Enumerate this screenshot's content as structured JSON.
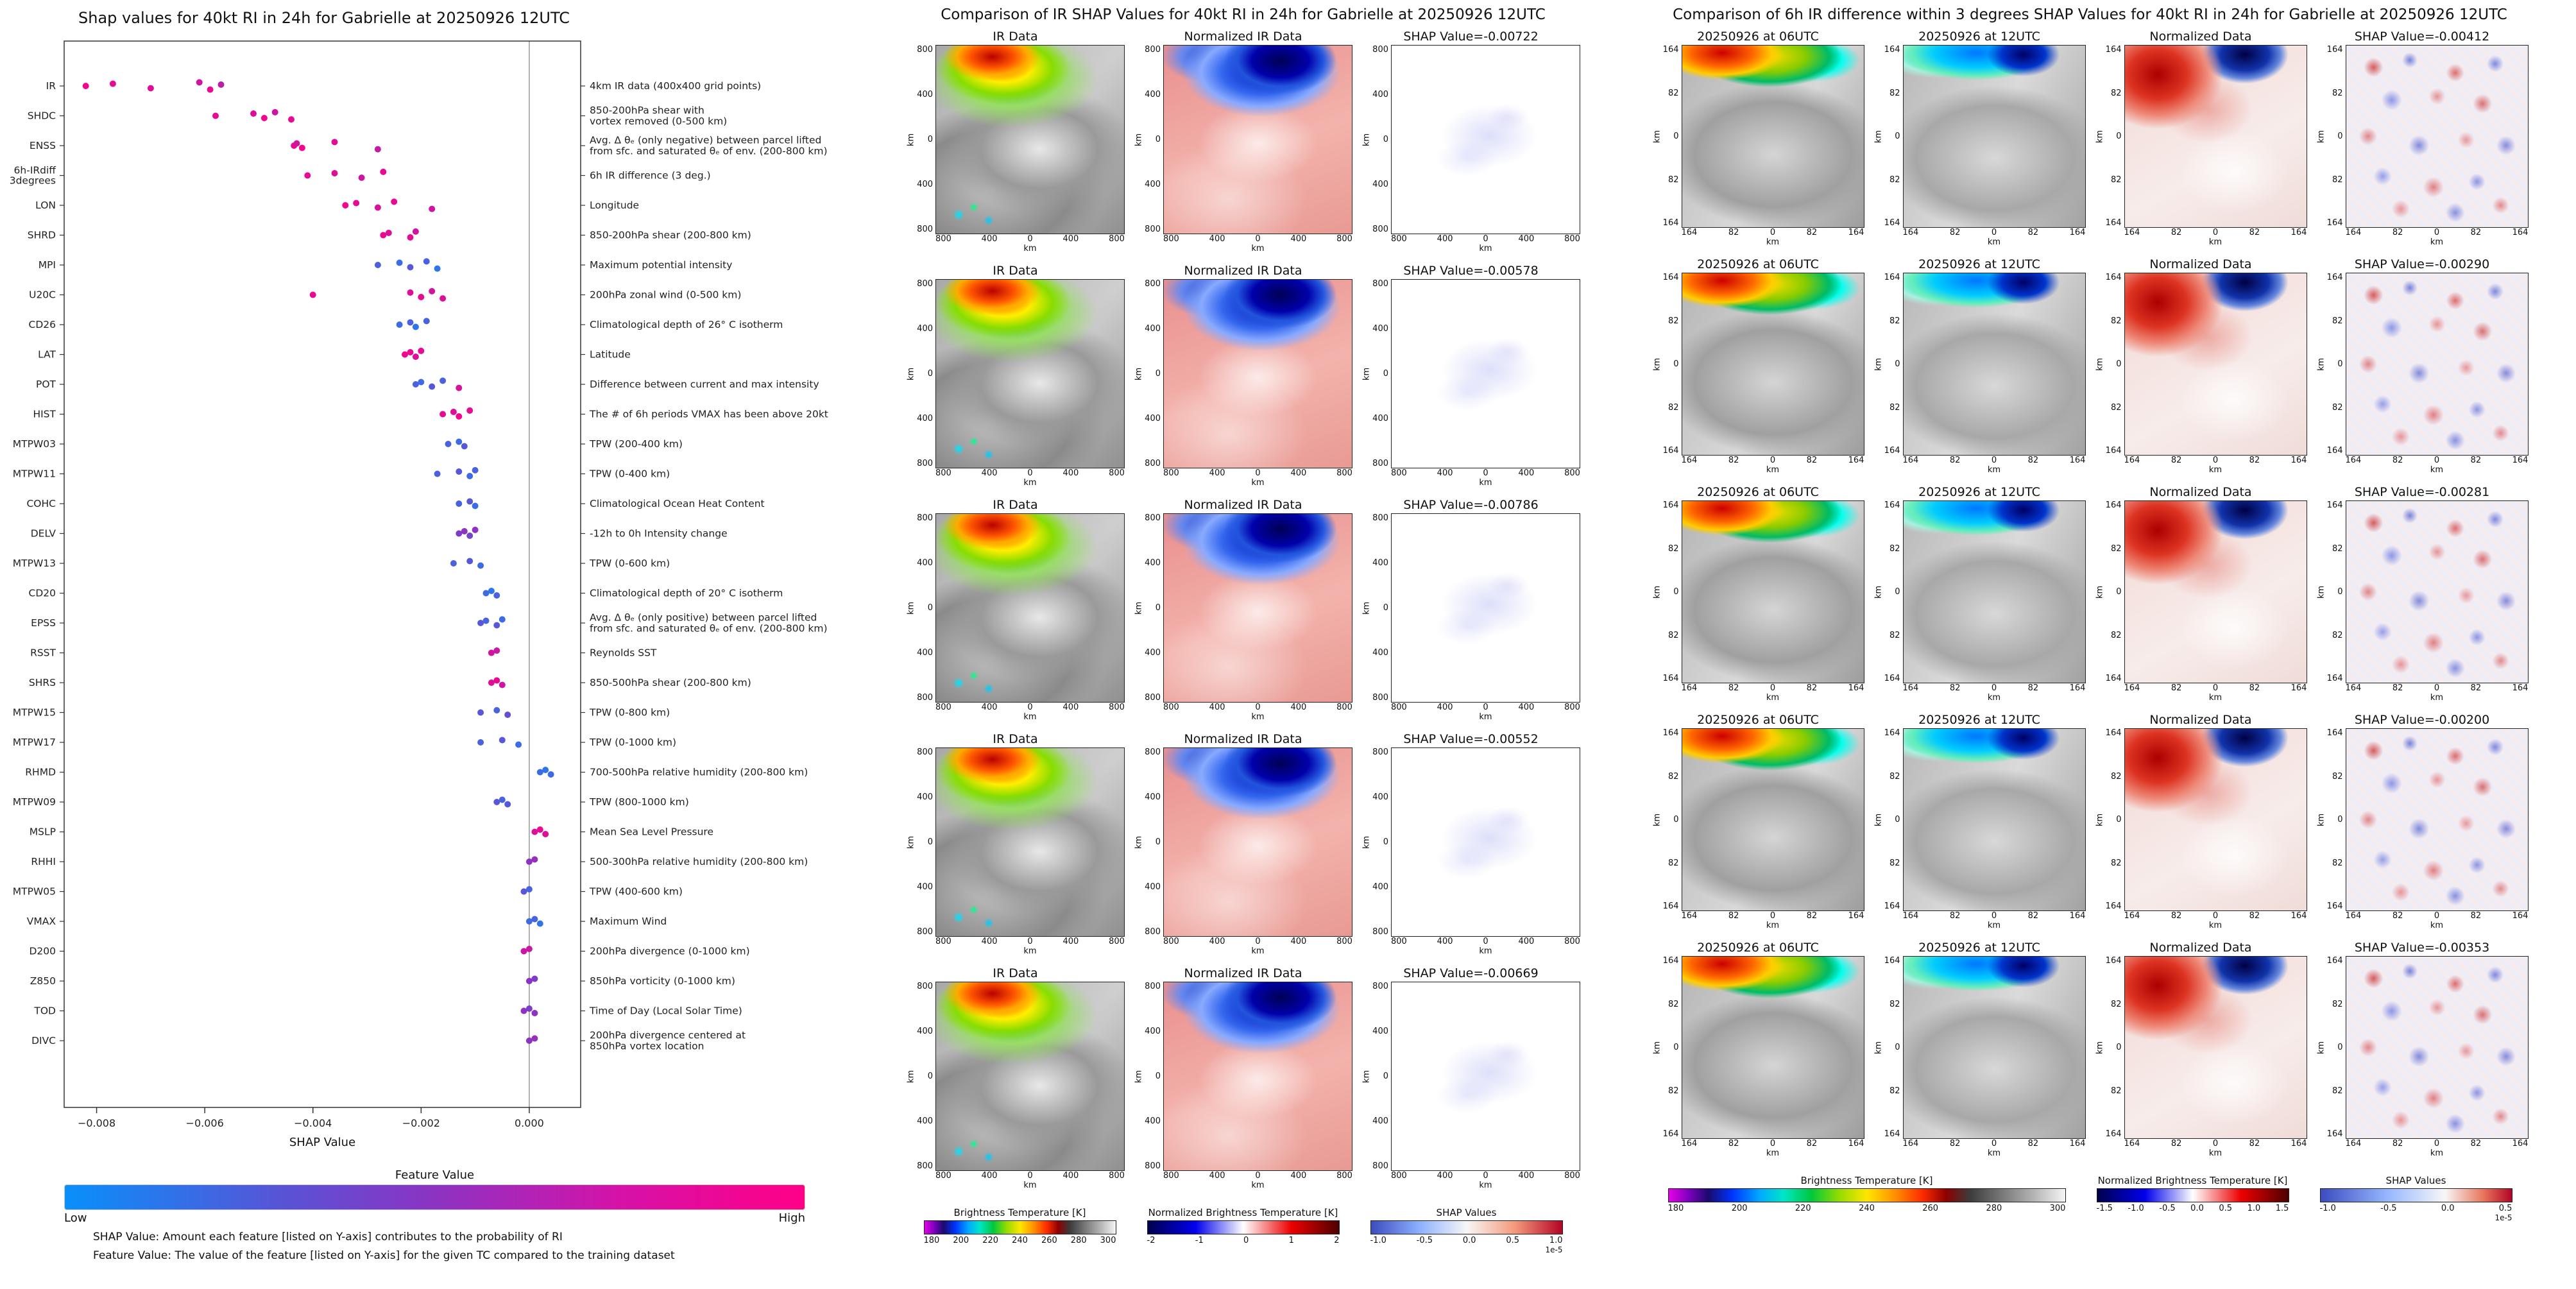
{
  "chart_data": {
    "type": "scatter",
    "title": "Shap values for 40kt RI in 24h for Gabrielle at 20250926 12UTC",
    "xlabel": "SHAP Value",
    "xlim": [
      -0.0086,
      0.00095
    ],
    "x_ticks": [
      {
        "v": -0.008,
        "label": "−0.008"
      },
      {
        "v": -0.006,
        "label": "−0.006"
      },
      {
        "v": -0.004,
        "label": "−0.004"
      },
      {
        "v": -0.002,
        "label": "−0.002"
      },
      {
        "v": 0.0,
        "label": "0.000"
      }
    ],
    "colorbar": {
      "label": "Feature Value",
      "low": "Low",
      "high": "High",
      "color_low": "#0890fb",
      "color_mid": "#8c33c2",
      "color_high": "#ff0087"
    },
    "notes": [
      "SHAP Value: Amount each feature [listed on Y-axis] contributes to the probability of RI",
      "Feature Value: The value of the feature [listed on Y-axis] for the given TC compared to the training dataset"
    ],
    "features": [
      {
        "name": "IR",
        "desc": "4km IR data (400x400 grid points)",
        "points": [
          [
            -0.0082,
            0.95
          ],
          [
            -0.0077,
            0.9
          ],
          [
            -0.007,
            0.85
          ],
          [
            -0.0061,
            0.8
          ],
          [
            -0.0059,
            0.9
          ],
          [
            -0.0057,
            0.7
          ]
        ]
      },
      {
        "name": "SHDC",
        "desc": "850-200hPa shear with\nvortex removed (0-500 km)",
        "points": [
          [
            -0.0058,
            0.9
          ],
          [
            -0.0051,
            0.85
          ],
          [
            -0.0049,
            0.95
          ],
          [
            -0.0047,
            0.8
          ],
          [
            -0.0044,
            0.9
          ]
        ]
      },
      {
        "name": "ENSS",
        "desc": "Avg. Δ θₑ (only negative) between parcel lifted\nfrom sfc. and saturated θₑ of env. (200-800 km)",
        "points": [
          [
            -0.00435,
            0.9
          ],
          [
            -0.0043,
            0.8
          ],
          [
            -0.0042,
            0.95
          ],
          [
            -0.0036,
            0.85
          ],
          [
            -0.0028,
            0.75
          ]
        ]
      },
      {
        "name": "6h-IRdiff\n3degrees",
        "desc": "6h IR difference (3 deg.)",
        "points": [
          [
            -0.0041,
            0.9
          ],
          [
            -0.0036,
            0.85
          ],
          [
            -0.0031,
            0.8
          ],
          [
            -0.0027,
            0.9
          ]
        ]
      },
      {
        "name": "LON",
        "desc": "Longitude",
        "points": [
          [
            -0.0034,
            0.95
          ],
          [
            -0.0032,
            0.9
          ],
          [
            -0.0028,
            0.85
          ],
          [
            -0.0025,
            0.9
          ],
          [
            -0.0018,
            0.8
          ]
        ]
      },
      {
        "name": "SHRD",
        "desc": "850-200hPa shear (200-800 km)",
        "points": [
          [
            -0.0027,
            0.9
          ],
          [
            -0.0026,
            0.85
          ],
          [
            -0.0022,
            0.9
          ],
          [
            -0.0021,
            0.8
          ]
        ]
      },
      {
        "name": "MPI",
        "desc": "Maximum potential intensity",
        "points": [
          [
            -0.0028,
            0.25
          ],
          [
            -0.0024,
            0.2
          ],
          [
            -0.0022,
            0.3
          ],
          [
            -0.0019,
            0.25
          ],
          [
            -0.0017,
            0.15
          ]
        ]
      },
      {
        "name": "U20C",
        "desc": "200hPa zonal wind (0-500 km)",
        "points": [
          [
            -0.004,
            0.9
          ],
          [
            -0.0022,
            0.85
          ],
          [
            -0.002,
            0.9
          ],
          [
            -0.0018,
            0.8
          ],
          [
            -0.0016,
            0.85
          ]
        ]
      },
      {
        "name": "CD26",
        "desc": "Climatological depth of 26° C isotherm",
        "points": [
          [
            -0.0024,
            0.2
          ],
          [
            -0.0022,
            0.25
          ],
          [
            -0.0021,
            0.15
          ],
          [
            -0.0019,
            0.25
          ]
        ]
      },
      {
        "name": "LAT",
        "desc": "Latitude",
        "points": [
          [
            -0.0023,
            0.95
          ],
          [
            -0.0022,
            0.9
          ],
          [
            -0.0021,
            0.85
          ],
          [
            -0.002,
            0.9
          ]
        ]
      },
      {
        "name": "POT",
        "desc": "Difference between current and max intensity",
        "points": [
          [
            -0.0021,
            0.25
          ],
          [
            -0.002,
            0.2
          ],
          [
            -0.0018,
            0.3
          ],
          [
            -0.0016,
            0.25
          ],
          [
            -0.0013,
            0.85
          ]
        ]
      },
      {
        "name": "HIST",
        "desc": "The # of 6h periods VMAX has been above 20kt",
        "points": [
          [
            -0.0016,
            0.9
          ],
          [
            -0.0014,
            0.85
          ],
          [
            -0.0013,
            0.95
          ],
          [
            -0.0011,
            0.9
          ]
        ]
      },
      {
        "name": "MTPW03",
        "desc": "TPW (200-400 km)",
        "points": [
          [
            -0.0015,
            0.25
          ],
          [
            -0.0013,
            0.2
          ],
          [
            -0.0012,
            0.3
          ]
        ]
      },
      {
        "name": "MTPW11",
        "desc": "TPW (0-400 km)",
        "points": [
          [
            -0.0017,
            0.25
          ],
          [
            -0.0013,
            0.3
          ],
          [
            -0.0011,
            0.2
          ],
          [
            -0.001,
            0.25
          ]
        ]
      },
      {
        "name": "COHC",
        "desc": "Climatological Ocean Heat Content",
        "points": [
          [
            -0.0013,
            0.25
          ],
          [
            -0.0011,
            0.3
          ],
          [
            -0.001,
            0.2
          ]
        ]
      },
      {
        "name": "DELV",
        "desc": "-12h to 0h Intensity change",
        "points": [
          [
            -0.0013,
            0.45
          ],
          [
            -0.0012,
            0.5
          ],
          [
            -0.0011,
            0.4
          ],
          [
            -0.001,
            0.5
          ]
        ]
      },
      {
        "name": "MTPW13",
        "desc": "TPW (0-600 km)",
        "points": [
          [
            -0.0014,
            0.25
          ],
          [
            -0.0011,
            0.3
          ],
          [
            -0.0009,
            0.2
          ]
        ]
      },
      {
        "name": "CD20",
        "desc": "Climatological depth of 20° C isotherm",
        "points": [
          [
            -0.0008,
            0.2
          ],
          [
            -0.0007,
            0.15
          ],
          [
            -0.0006,
            0.25
          ]
        ]
      },
      {
        "name": "EPSS",
        "desc": "Avg. Δ θₑ (only positive) between parcel lifted\nfrom sfc. and saturated θₑ of env. (200-800 km)",
        "points": [
          [
            -0.0009,
            0.3
          ],
          [
            -0.0008,
            0.25
          ],
          [
            -0.0006,
            0.3
          ],
          [
            -0.0005,
            0.2
          ]
        ]
      },
      {
        "name": "RSST",
        "desc": "Reynolds SST",
        "points": [
          [
            -0.0007,
            0.8
          ],
          [
            -0.0006,
            0.75
          ]
        ]
      },
      {
        "name": "SHRS",
        "desc": "850-500hPa shear (200-800 km)",
        "points": [
          [
            -0.0007,
            0.85
          ],
          [
            -0.0006,
            0.9
          ],
          [
            -0.0005,
            0.8
          ]
        ]
      },
      {
        "name": "MTPW15",
        "desc": "TPW (0-800 km)",
        "points": [
          [
            -0.0009,
            0.3
          ],
          [
            -0.0006,
            0.25
          ],
          [
            -0.0004,
            0.35
          ]
        ]
      },
      {
        "name": "MTPW17",
        "desc": "TPW (0-1000 km)",
        "points": [
          [
            -0.0009,
            0.25
          ],
          [
            -0.0005,
            0.3
          ],
          [
            -0.0002,
            0.2
          ]
        ]
      },
      {
        "name": "RHMD",
        "desc": "700-500hPa relative humidity (200-800 km)",
        "points": [
          [
            0.0002,
            0.2
          ],
          [
            0.0003,
            0.15
          ],
          [
            0.0004,
            0.2
          ]
        ]
      },
      {
        "name": "MTPW09",
        "desc": "TPW (800-1000 km)",
        "points": [
          [
            -0.0006,
            0.3
          ],
          [
            -0.0005,
            0.25
          ],
          [
            -0.0004,
            0.3
          ]
        ]
      },
      {
        "name": "MSLP",
        "desc": "Mean Sea Level Pressure",
        "points": [
          [
            0.0001,
            0.85
          ],
          [
            0.0002,
            0.9
          ],
          [
            0.0003,
            0.85
          ]
        ]
      },
      {
        "name": "RHHI",
        "desc": "500-300hPa relative humidity (200-800 km)",
        "points": [
          [
            0.0,
            0.5
          ],
          [
            0.0001,
            0.55
          ]
        ]
      },
      {
        "name": "MTPW05",
        "desc": "TPW (400-600 km)",
        "points": [
          [
            -0.0001,
            0.3
          ],
          [
            0.0,
            0.25
          ]
        ]
      },
      {
        "name": "VMAX",
        "desc": "Maximum Wind",
        "points": [
          [
            0.0,
            0.2
          ],
          [
            0.0001,
            0.25
          ],
          [
            0.0002,
            0.15
          ]
        ]
      },
      {
        "name": "D200",
        "desc": "200hPa divergence (0-1000 km)",
        "points": [
          [
            -0.0001,
            0.8
          ],
          [
            0.0,
            0.75
          ]
        ]
      },
      {
        "name": "Z850",
        "desc": "850hPa vorticity (0-1000 km)",
        "points": [
          [
            0.0,
            0.5
          ],
          [
            0.0001,
            0.45
          ]
        ]
      },
      {
        "name": "TOD",
        "desc": "Time of Day (Local Solar Time)",
        "points": [
          [
            -0.0001,
            0.5
          ],
          [
            0.0,
            0.45
          ],
          [
            0.0001,
            0.5
          ]
        ]
      },
      {
        "name": "DIVC",
        "desc": "200hPa divergence centered at\n850hPa vortex location",
        "points": [
          [
            0.0,
            0.5
          ],
          [
            0.0001,
            0.55
          ]
        ]
      }
    ]
  },
  "ir_panel": {
    "title": "Comparison of IR SHAP Values for 40kt RI in 24h for Gabrielle at 20250926 12UTC",
    "col_titles": [
      "IR Data",
      "Normalized IR Data"
    ],
    "rows": [
      {
        "shap_label": "SHAP Value=-0.00722"
      },
      {
        "shap_label": "SHAP Value=-0.00578"
      },
      {
        "shap_label": "SHAP Value=-0.00786"
      },
      {
        "shap_label": "SHAP Value=-0.00552"
      },
      {
        "shap_label": "SHAP Value=-0.00669"
      }
    ],
    "axis_ticks": [
      "800",
      "400",
      "0",
      "400",
      "800"
    ],
    "axis_label": "km",
    "colorbars": [
      {
        "title": "Brightness Temperature [K]",
        "ticks": [
          "180",
          "200",
          "220",
          "240",
          "260",
          "280",
          "300"
        ],
        "type": "bt",
        "width": "w300"
      },
      {
        "title": "Normalized Brightness Temperature [K]",
        "ticks": [
          "-2",
          "-1",
          "0",
          "1",
          "2"
        ],
        "type": "seismic",
        "width": "w300"
      },
      {
        "title": "SHAP Values",
        "ticks": [
          "-1.0",
          "-0.5",
          "0.0",
          "0.5",
          "1.0"
        ],
        "exp": "1e-5",
        "type": "coolwarm",
        "width": "w300"
      }
    ]
  },
  "irdiff_panel": {
    "title": "Comparison of 6h IR difference within 3 degrees SHAP Values for 40kt RI in 24h for Gabrielle at 20250926 12UTC",
    "col_titles": [
      "20250926 at 06UTC",
      "20250926 at 12UTC",
      "Normalized Data"
    ],
    "rows": [
      {
        "shap_label": "SHAP Value=-0.00412"
      },
      {
        "shap_label": "SHAP Value=-0.00290"
      },
      {
        "shap_label": "SHAP Value=-0.00281"
      },
      {
        "shap_label": "SHAP Value=-0.00200"
      },
      {
        "shap_label": "SHAP Value=-0.00353"
      }
    ],
    "axis_ticks": [
      "164",
      "82",
      "0",
      "82",
      "164"
    ],
    "axis_label": "km",
    "colorbars": [
      {
        "title": "Brightness Temperature [K]",
        "ticks": [
          "180",
          "200",
          "220",
          "240",
          "260",
          "280",
          "300"
        ],
        "type": "bt",
        "width": "w620"
      },
      {
        "title": "Normalized Brightness Temperature [K]",
        "ticks": [
          "-1.5",
          "-1.0",
          "-0.5",
          "0.0",
          "0.5",
          "1.0",
          "1.5"
        ],
        "type": "seismic",
        "width": "w300"
      },
      {
        "title": "SHAP Values",
        "ticks": [
          "-1.0",
          "-0.5",
          "0.0",
          "0.5"
        ],
        "exp": "1e-5",
        "type": "coolwarm2",
        "width": "w300"
      }
    ]
  }
}
